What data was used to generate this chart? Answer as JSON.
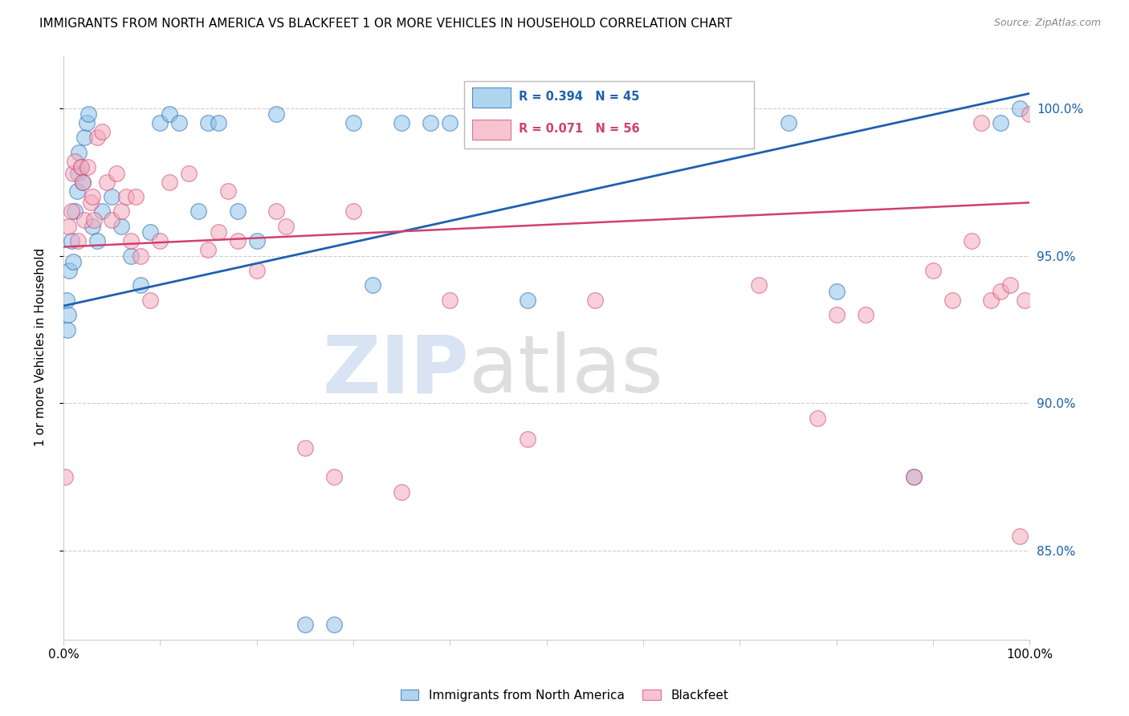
{
  "title": "IMMIGRANTS FROM NORTH AMERICA VS BLACKFEET 1 OR MORE VEHICLES IN HOUSEHOLD CORRELATION CHART",
  "source": "Source: ZipAtlas.com",
  "ylabel": "1 or more Vehicles in Household",
  "y_tick_labels": [
    "85.0%",
    "90.0%",
    "95.0%",
    "100.0%"
  ],
  "y_tick_values": [
    85.0,
    90.0,
    95.0,
    100.0
  ],
  "x_range": [
    0.0,
    100.0
  ],
  "y_range": [
    82.0,
    101.8
  ],
  "legend_blue_label": "Immigrants from North America",
  "legend_pink_label": "Blackfeet",
  "R_blue": 0.394,
  "N_blue": 45,
  "R_pink": 0.071,
  "N_pink": 56,
  "blue_color": "#8ec4e8",
  "pink_color": "#f4aabc",
  "blue_line_color": "#2060b0",
  "pink_line_color": "#d04070",
  "blue_scatter_x": [
    0.3,
    0.4,
    0.5,
    0.6,
    0.8,
    1.0,
    1.2,
    1.4,
    1.5,
    1.6,
    1.8,
    2.0,
    2.2,
    2.4,
    2.6,
    3.0,
    3.5,
    4.0,
    5.0,
    6.0,
    7.0,
    8.0,
    9.0,
    10.0,
    11.0,
    12.0,
    14.0,
    15.0,
    16.0,
    18.0,
    20.0,
    22.0,
    25.0,
    28.0,
    30.0,
    32.0,
    35.0,
    38.0,
    40.0,
    48.0,
    75.0,
    80.0,
    88.0,
    97.0,
    99.0
  ],
  "blue_scatter_y": [
    93.5,
    92.5,
    93.0,
    94.5,
    95.5,
    94.8,
    96.5,
    97.2,
    97.8,
    98.5,
    98.0,
    97.5,
    99.0,
    99.5,
    99.8,
    96.0,
    95.5,
    96.5,
    97.0,
    96.0,
    95.0,
    94.0,
    95.8,
    99.5,
    99.8,
    99.5,
    96.5,
    99.5,
    99.5,
    96.5,
    95.5,
    99.8,
    82.5,
    82.5,
    99.5,
    94.0,
    99.5,
    99.5,
    99.5,
    93.5,
    99.5,
    93.8,
    87.5,
    99.5,
    100.0
  ],
  "pink_scatter_x": [
    0.2,
    0.5,
    0.8,
    1.0,
    1.2,
    1.5,
    1.8,
    2.0,
    2.2,
    2.5,
    2.8,
    3.0,
    3.2,
    3.5,
    4.0,
    4.5,
    5.0,
    5.5,
    6.0,
    6.5,
    7.0,
    7.5,
    8.0,
    9.0,
    10.0,
    11.0,
    13.0,
    15.0,
    16.0,
    17.0,
    18.0,
    20.0,
    22.0,
    23.0,
    25.0,
    28.0,
    30.0,
    35.0,
    40.0,
    48.0,
    55.0,
    72.0,
    78.0,
    80.0,
    83.0,
    88.0,
    90.0,
    92.0,
    94.0,
    95.0,
    96.0,
    97.0,
    98.0,
    99.0,
    99.5,
    100.0
  ],
  "pink_scatter_y": [
    87.5,
    96.0,
    96.5,
    97.8,
    98.2,
    95.5,
    98.0,
    97.5,
    96.2,
    98.0,
    96.8,
    97.0,
    96.2,
    99.0,
    99.2,
    97.5,
    96.2,
    97.8,
    96.5,
    97.0,
    95.5,
    97.0,
    95.0,
    93.5,
    95.5,
    97.5,
    97.8,
    95.2,
    95.8,
    97.2,
    95.5,
    94.5,
    96.5,
    96.0,
    88.5,
    87.5,
    96.5,
    87.0,
    93.5,
    88.8,
    93.5,
    94.0,
    89.5,
    93.0,
    93.0,
    87.5,
    94.5,
    93.5,
    95.5,
    99.5,
    93.5,
    93.8,
    94.0,
    85.5,
    93.5,
    99.8
  ],
  "blue_line_x0": 0.0,
  "blue_line_y0": 93.3,
  "blue_line_x1": 100.0,
  "blue_line_y1": 100.5,
  "pink_line_x0": 0.0,
  "pink_line_y0": 95.3,
  "pink_line_x1": 100.0,
  "pink_line_y1": 96.8
}
